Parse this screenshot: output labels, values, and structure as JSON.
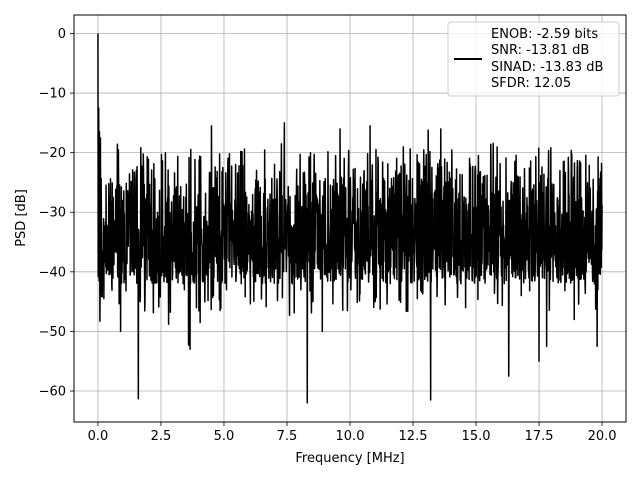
{
  "chart_data": {
    "type": "line",
    "title": "",
    "xlabel": "Frequency [MHz]",
    "ylabel": "PSD [dB]",
    "xlim": [
      -0.95,
      20.95
    ],
    "ylim": [
      -65.2,
      3.1
    ],
    "x_ticks": [
      0,
      2.5,
      5,
      7.5,
      10,
      12.5,
      15,
      17.5,
      20
    ],
    "x_tick_labels": [
      "0.0",
      "2.5",
      "5.0",
      "7.5",
      "10.0",
      "12.5",
      "15.0",
      "17.5",
      "20.0"
    ],
    "y_ticks": [
      0,
      -10,
      -20,
      -30,
      -40,
      -50,
      -60
    ],
    "y_tick_labels": [
      "0",
      "−10",
      "−20",
      "−30",
      "−40",
      "−50",
      "−60"
    ],
    "grid": true,
    "legend_position": "upper-right",
    "legend_lines": [
      "ENOB: -2.59 bits",
      "SNR: -13.81 dB",
      "SINAD: -13.83 dB",
      "SFDR: 12.05"
    ],
    "series": [
      {
        "color": "#000000",
        "note": "dense noise floor spectrum, approx. 2048 bins from 0 to 20 MHz, mostly between -42 and -18 dB",
        "bin_count": 2048,
        "x_range": [
          0,
          20
        ],
        "noise_band": [
          -42,
          -18
        ],
        "peak": {
          "x": 0.0,
          "y": 0.0
        },
        "spikes_low": [
          {
            "x": 0.08,
            "y": -48.3
          },
          {
            "x": 0.23,
            "y": -44.5
          },
          {
            "x": 0.9,
            "y": -50.0
          },
          {
            "x": 1.6,
            "y": -61.3
          },
          {
            "x": 2.8,
            "y": -48.8
          },
          {
            "x": 3.6,
            "y": -52.3
          },
          {
            "x": 3.65,
            "y": -53.0
          },
          {
            "x": 4.05,
            "y": -48.5
          },
          {
            "x": 5.1,
            "y": -43.0
          },
          {
            "x": 6.2,
            "y": -39.5
          },
          {
            "x": 7.6,
            "y": -47.3
          },
          {
            "x": 8.3,
            "y": -62.0
          },
          {
            "x": 8.9,
            "y": -50.0
          },
          {
            "x": 9.9,
            "y": -46.5
          },
          {
            "x": 11.0,
            "y": -45.0
          },
          {
            "x": 13.2,
            "y": -61.5
          },
          {
            "x": 14.4,
            "y": -42.0
          },
          {
            "x": 15.7,
            "y": -40.0
          },
          {
            "x": 16.3,
            "y": -57.5
          },
          {
            "x": 16.8,
            "y": -44.0
          },
          {
            "x": 17.5,
            "y": -55.0
          },
          {
            "x": 17.8,
            "y": -52.5
          },
          {
            "x": 18.9,
            "y": -48.0
          },
          {
            "x": 19.8,
            "y": -52.5
          }
        ],
        "spikes_high": [
          {
            "x": 0.03,
            "y": -12.5
          },
          {
            "x": 0.06,
            "y": -16.5
          },
          {
            "x": 0.1,
            "y": -17.5
          },
          {
            "x": 4.5,
            "y": -15.5
          },
          {
            "x": 7.4,
            "y": -15.0
          },
          {
            "x": 9.6,
            "y": -16.0
          },
          {
            "x": 10.8,
            "y": -15.5
          },
          {
            "x": 13.1,
            "y": -16.2
          },
          {
            "x": 13.6,
            "y": -16.0
          }
        ]
      }
    ]
  }
}
